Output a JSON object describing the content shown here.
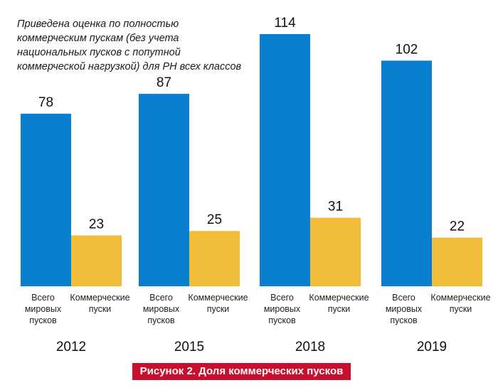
{
  "chart_data": {
    "type": "bar",
    "title": "Рисунок 2. Доля коммерческих пусков",
    "note_lines": [
      "Приведена оценка по полностью",
      "коммерческим пускам (без учета",
      "национальных пусков с попутной",
      "коммерческой нагрузкой) для РН всех классов"
    ],
    "categories": [
      "2012",
      "2015",
      "2018",
      "2019"
    ],
    "series": [
      {
        "name_lines": [
          "Всего",
          "мировых",
          "пусков"
        ],
        "color": "#0a7fd0",
        "values": [
          78,
          87,
          114,
          102
        ]
      },
      {
        "name_lines": [
          "Коммерческие",
          "пуски"
        ],
        "color": "#f2bd38",
        "values": [
          23,
          25,
          31,
          22
        ]
      }
    ],
    "ylim": [
      0,
      114
    ],
    "grid": false,
    "xlabel": "",
    "ylabel": ""
  }
}
